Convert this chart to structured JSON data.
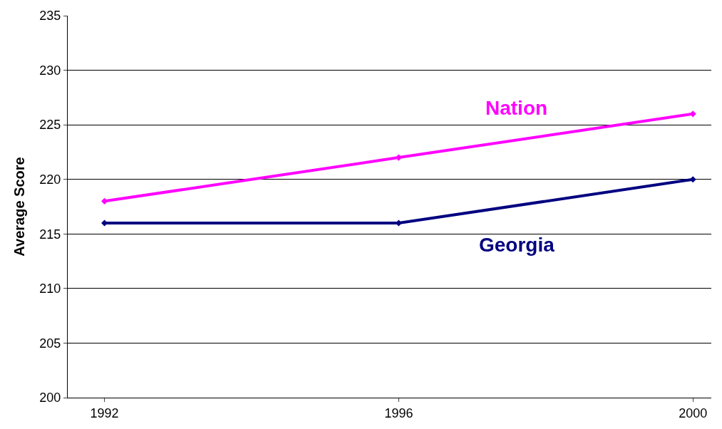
{
  "chart_data": {
    "type": "line",
    "ylabel": "Average Score",
    "x": [
      1992,
      1996,
      2000
    ],
    "series": [
      {
        "name": "Nation",
        "color": "#ff00ff",
        "values": [
          218,
          222,
          226
        ]
      },
      {
        "name": "Georgia",
        "color": "#000080",
        "values": [
          216,
          216,
          220
        ]
      }
    ],
    "xlim": [
      1991.5,
      2000.25
    ],
    "xticks": [
      1992,
      1996,
      2000
    ],
    "ylim": [
      200,
      235
    ],
    "yticks": [
      200,
      205,
      210,
      215,
      220,
      225,
      230,
      235
    ],
    "grid": "y",
    "legend": false,
    "marker": "diamond",
    "line_style": "solid"
  }
}
